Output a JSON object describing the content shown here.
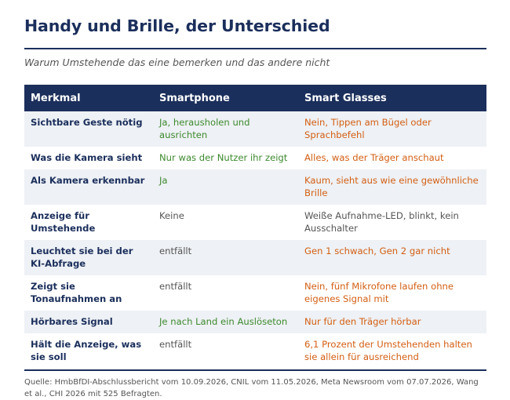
{
  "title": "Handy und Brille, der Unterschied",
  "subtitle": "Warum Umstehende das eine bemerken und das andere nicht",
  "table": {
    "headers": [
      "Merkmal",
      "Smartphone",
      "Smart Glasses"
    ],
    "rows": [
      {
        "feature": "Sichtbare Geste nötig",
        "smartphone": "Ja, herausholen und ausrichten",
        "glasses": "Nein, Tippen am Bügel oder Sprachbefehl"
      },
      {
        "feature": "Was die Kamera sieht",
        "smartphone": "Nur was der Nutzer ihr zeigt",
        "glasses": "Alles, was der Träger anschaut"
      },
      {
        "feature": "Als Kamera erkennbar",
        "smartphone": "Ja",
        "glasses": "Kaum, sieht aus wie eine gewöhnliche Brille"
      },
      {
        "feature": "Anzeige für Umstehende",
        "smartphone": "Keine",
        "glasses": "Weiße Aufnahme-LED, blinkt, kein Ausschalter"
      },
      {
        "feature": "Leuchtet sie bei der KI-Abfrage",
        "smartphone": "entfällt",
        "glasses": "Gen 1 schwach, Gen 2 gar nicht"
      },
      {
        "feature": "Zeigt sie Tonaufnahmen an",
        "smartphone": "entfällt",
        "glasses": "Nein, fünf Mikrofone laufen ohne eigenes Signal mit"
      },
      {
        "feature": "Hörbares Signal",
        "smartphone": "Je nach Land ein Auslöseton",
        "glasses": "Nur für den Träger hörbar"
      },
      {
        "feature": "Hält die Anzeige, was sie soll",
        "smartphone": "entfällt",
        "glasses": "6,1 Prozent der Umstehenden halten sie allein für ausreichend"
      }
    ]
  },
  "source": "Quelle: HmbBfDI-Abschlussbericht vom 10.09.2026, CNIL vom 11.05.2026, Meta Newsroom vom 07.07.2026, Wang et al., CHI 2026 mit 525 Befragten.",
  "colors": {
    "navy": "#1b2f5c",
    "positive": "#3d8a2e",
    "negative": "#d35f14",
    "neutral": "#555555",
    "row_alt": "#eef1f5"
  }
}
